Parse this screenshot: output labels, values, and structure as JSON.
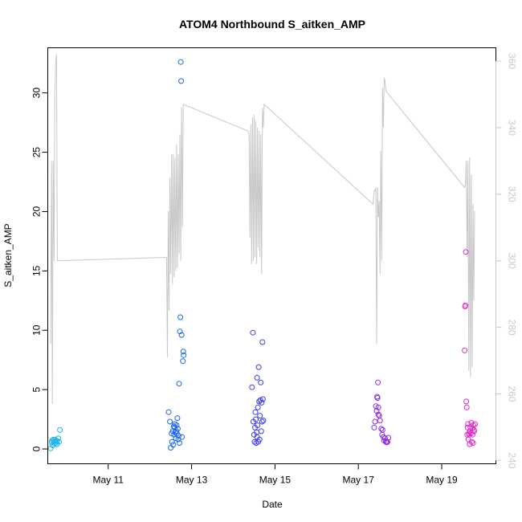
{
  "chart_data": {
    "type": "scatter",
    "title": "ATOM4 Northbound S_aitken_AMP",
    "xlabel": "Date",
    "ylabel": "S_aitken_AMP",
    "y2label": "",
    "x_ticks": [
      "May 11",
      "May 13",
      "May 15",
      "May 17",
      "May 19"
    ],
    "xlim": [
      9.55,
      20.3
    ],
    "ylim": [
      -1.25,
      33.8
    ],
    "y_ticks": [
      0,
      5,
      10,
      15,
      20,
      25,
      30
    ],
    "y2lim": [
      239,
      364
    ],
    "y2_ticks": [
      240,
      260,
      280,
      300,
      320,
      340,
      360
    ],
    "grid": false,
    "legend": "none",
    "colors": {
      "line": "#c8c8c8",
      "groups": [
        "#1fb2e6",
        "#1a66f0",
        "#3a3cf0",
        "#8c28e8",
        "#e028c8"
      ]
    },
    "series": [
      {
        "color_index": 0,
        "points": [
          [
            9.62,
            0.05
          ],
          [
            9.64,
            0.55
          ],
          [
            9.65,
            0.7
          ],
          [
            9.67,
            0.3
          ],
          [
            9.68,
            0.78
          ],
          [
            9.7,
            0.62
          ],
          [
            9.71,
            0.45
          ],
          [
            9.72,
            0.8
          ],
          [
            9.74,
            0.5
          ],
          [
            9.75,
            0.7
          ],
          [
            9.77,
            0.4
          ],
          [
            9.78,
            0.65
          ],
          [
            9.8,
            0.9
          ],
          [
            9.82,
            0.6
          ],
          [
            9.84,
            1.6
          ]
        ]
      },
      {
        "color_index": 1,
        "points": [
          [
            12.45,
            3.1
          ],
          [
            12.48,
            2.3
          ],
          [
            12.5,
            0.1
          ],
          [
            12.52,
            1.3
          ],
          [
            12.53,
            0.6
          ],
          [
            12.55,
            1.5
          ],
          [
            12.56,
            0.35
          ],
          [
            12.57,
            1.9
          ],
          [
            12.58,
            1.2
          ],
          [
            12.59,
            1.8
          ],
          [
            12.6,
            2.1
          ],
          [
            12.61,
            1.4
          ],
          [
            12.62,
            0.9
          ],
          [
            12.63,
            1.5
          ],
          [
            12.64,
            2.0
          ],
          [
            12.65,
            1.3
          ],
          [
            12.66,
            2.6
          ],
          [
            12.67,
            1.7
          ],
          [
            12.68,
            0.8
          ],
          [
            12.69,
            1.1
          ],
          [
            12.7,
            5.5
          ],
          [
            12.72,
            9.9
          ],
          [
            12.73,
            11.1
          ],
          [
            12.74,
            32.6
          ],
          [
            12.75,
            31.0
          ],
          [
            12.76,
            9.6
          ],
          [
            12.8,
            8.2
          ],
          [
            12.81,
            7.9
          ],
          [
            12.79,
            7.4
          ],
          [
            12.71,
            0.5
          ],
          [
            12.77,
            1.0
          ]
        ]
      },
      {
        "color_index": 2,
        "points": [
          [
            14.45,
            5.2
          ],
          [
            14.47,
            9.8
          ],
          [
            14.48,
            2.3
          ],
          [
            14.5,
            1.2
          ],
          [
            14.51,
            0.6
          ],
          [
            14.52,
            1.8
          ],
          [
            14.53,
            3.1
          ],
          [
            14.54,
            2.5
          ],
          [
            14.55,
            0.5
          ],
          [
            14.56,
            1.4
          ],
          [
            14.57,
            6.0
          ],
          [
            14.58,
            2.0
          ],
          [
            14.59,
            3.5
          ],
          [
            14.6,
            0.6
          ],
          [
            14.61,
            6.9
          ],
          [
            14.62,
            4.0
          ],
          [
            14.63,
            0.8
          ],
          [
            14.64,
            2.8
          ],
          [
            14.65,
            4.1
          ],
          [
            14.66,
            5.6
          ],
          [
            14.67,
            1.5
          ],
          [
            14.68,
            3.9
          ],
          [
            14.69,
            2.3
          ],
          [
            14.7,
            9.0
          ],
          [
            14.71,
            4.2
          ],
          [
            14.72,
            2.4
          ],
          [
            14.57,
            1.0
          ]
        ]
      },
      {
        "color_index": 3,
        "points": [
          [
            17.38,
            1.8
          ],
          [
            17.4,
            2.3
          ],
          [
            17.42,
            3.6
          ],
          [
            17.44,
            3.2
          ],
          [
            17.45,
            4.4
          ],
          [
            17.46,
            4.3
          ],
          [
            17.47,
            5.6
          ],
          [
            17.48,
            2.9
          ],
          [
            17.5,
            2.8
          ],
          [
            17.52,
            2.4
          ],
          [
            17.55,
            1.7
          ],
          [
            17.57,
            1.2
          ],
          [
            17.58,
            1.6
          ],
          [
            17.6,
            1.0
          ],
          [
            17.62,
            0.7
          ],
          [
            17.64,
            0.9
          ],
          [
            17.66,
            0.6
          ],
          [
            17.68,
            0.55
          ],
          [
            17.7,
            0.6
          ],
          [
            17.72,
            0.95
          ],
          [
            17.48,
            3.5
          ]
        ]
      },
      {
        "color_index": 4,
        "points": [
          [
            19.55,
            8.3
          ],
          [
            19.56,
            12.0
          ],
          [
            19.57,
            12.1
          ],
          [
            19.58,
            16.6
          ],
          [
            19.59,
            4.0
          ],
          [
            19.6,
            3.5
          ],
          [
            19.61,
            1.2
          ],
          [
            19.62,
            1.8
          ],
          [
            19.63,
            2.1
          ],
          [
            19.64,
            0.8
          ],
          [
            19.65,
            1.3
          ],
          [
            19.66,
            1.2
          ],
          [
            19.67,
            0.4
          ],
          [
            19.68,
            1.5
          ],
          [
            19.69,
            1.8
          ],
          [
            19.7,
            1.3
          ],
          [
            19.71,
            2.2
          ],
          [
            19.72,
            0.6
          ],
          [
            19.73,
            1.7
          ],
          [
            19.74,
            1.2
          ],
          [
            19.75,
            0.5
          ],
          [
            19.76,
            2.0
          ],
          [
            19.77,
            1.6
          ],
          [
            19.78,
            1.5
          ],
          [
            19.8,
            2.1
          ]
        ]
      }
    ],
    "line_series": {
      "axis": "right",
      "points": [
        [
          9.62,
          275
        ],
        [
          9.64,
          330
        ],
        [
          9.66,
          257
        ],
        [
          9.68,
          330
        ],
        [
          9.7,
          300
        ],
        [
          9.72,
          350
        ],
        [
          9.74,
          360
        ],
        [
          9.76,
          362
        ],
        [
          9.78,
          300
        ],
        [
          12.3,
          301
        ],
        [
          12.4,
          301
        ],
        [
          12.42,
          271
        ],
        [
          12.44,
          315
        ],
        [
          12.46,
          285
        ],
        [
          12.48,
          325
        ],
        [
          12.5,
          296
        ],
        [
          12.52,
          332
        ],
        [
          12.54,
          293
        ],
        [
          12.56,
          332
        ],
        [
          12.58,
          295
        ],
        [
          12.6,
          331
        ],
        [
          12.62,
          297
        ],
        [
          12.64,
          335
        ],
        [
          12.66,
          298
        ],
        [
          12.68,
          332
        ],
        [
          12.7,
          302
        ],
        [
          12.72,
          338
        ],
        [
          12.74,
          300
        ],
        [
          12.76,
          346
        ],
        [
          12.78,
          310
        ],
        [
          12.8,
          347
        ],
        [
          14.35,
          339
        ],
        [
          14.38,
          338
        ],
        [
          14.4,
          307
        ],
        [
          14.42,
          341
        ],
        [
          14.44,
          299
        ],
        [
          14.46,
          343
        ],
        [
          14.48,
          300
        ],
        [
          14.5,
          344
        ],
        [
          14.52,
          301
        ],
        [
          14.54,
          342
        ],
        [
          14.56,
          299
        ],
        [
          14.58,
          340
        ],
        [
          14.6,
          304
        ],
        [
          14.62,
          339
        ],
        [
          14.64,
          301
        ],
        [
          14.66,
          338
        ],
        [
          14.68,
          296
        ],
        [
          14.7,
          346
        ],
        [
          14.72,
          340
        ],
        [
          14.74,
          347
        ],
        [
          17.35,
          317
        ],
        [
          17.38,
          321
        ],
        [
          17.4,
          321
        ],
        [
          17.42,
          322
        ],
        [
          17.44,
          275
        ],
        [
          17.46,
          322
        ],
        [
          17.48,
          313
        ],
        [
          17.5,
          318
        ],
        [
          17.52,
          296
        ],
        [
          17.54,
          333
        ],
        [
          17.56,
          300
        ],
        [
          17.58,
          352
        ],
        [
          17.6,
          340
        ],
        [
          17.62,
          355
        ],
        [
          17.64,
          354
        ],
        [
          17.66,
          351
        ],
        [
          19.55,
          322
        ],
        [
          19.57,
          323
        ],
        [
          19.59,
          330
        ],
        [
          19.61,
          301
        ],
        [
          19.63,
          330
        ],
        [
          19.65,
          267
        ],
        [
          19.67,
          331
        ],
        [
          19.69,
          265
        ],
        [
          19.71,
          326
        ],
        [
          19.73,
          268
        ],
        [
          19.75,
          317
        ],
        [
          19.77,
          288
        ],
        [
          19.79,
          315
        ]
      ]
    }
  }
}
